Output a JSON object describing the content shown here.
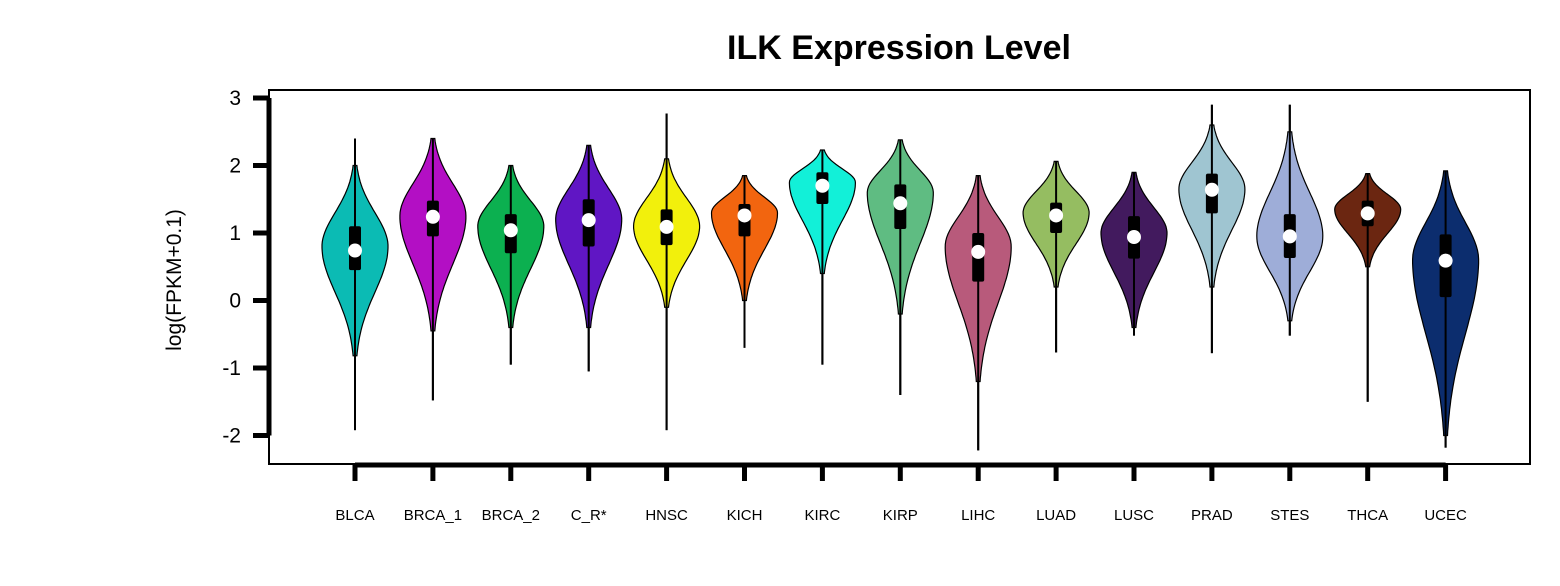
{
  "chart_data": {
    "type": "violin",
    "title": "ILK Expression Level",
    "xlabel": "",
    "ylabel": "log(FPKM+0.1)",
    "ylim": [
      -2.45,
      3.1
    ],
    "yticks": [
      -2,
      -1,
      0,
      1,
      2,
      3
    ],
    "grid": false,
    "legend": "none",
    "series": [
      {
        "name": "BLCA",
        "color": "#0bbbb4",
        "min": -1.92,
        "max": 2.4,
        "q1": 0.45,
        "median": 0.74,
        "q3": 1.1,
        "vmin": -0.82,
        "vmax": 2.0,
        "mode": 0.8
      },
      {
        "name": "BRCA_1",
        "color": "#b30fc4",
        "min": -1.48,
        "max": 2.4,
        "q1": 0.95,
        "median": 1.24,
        "q3": 1.48,
        "vmin": -0.45,
        "vmax": 2.4,
        "mode": 1.25
      },
      {
        "name": "BRCA_2",
        "color": "#0cb050",
        "min": -0.95,
        "max": 2.0,
        "q1": 0.7,
        "median": 1.04,
        "q3": 1.28,
        "vmin": -0.4,
        "vmax": 2.0,
        "mode": 1.1
      },
      {
        "name": "C_R*",
        "color": "#6016c4",
        "min": -1.05,
        "max": 2.3,
        "q1": 0.8,
        "median": 1.19,
        "q3": 1.5,
        "vmin": -0.4,
        "vmax": 2.3,
        "mode": 1.2
      },
      {
        "name": "HNSC",
        "color": "#f2f00c",
        "min": -1.92,
        "max": 2.77,
        "q1": 0.82,
        "median": 1.09,
        "q3": 1.35,
        "vmin": -0.1,
        "vmax": 2.1,
        "mode": 1.1
      },
      {
        "name": "KICH",
        "color": "#f2650f",
        "min": -0.7,
        "max": 1.85,
        "q1": 0.95,
        "median": 1.26,
        "q3": 1.43,
        "vmin": 0.0,
        "vmax": 1.85,
        "mode": 1.3
      },
      {
        "name": "KIRC",
        "color": "#12f0d8",
        "min": -0.95,
        "max": 2.23,
        "q1": 1.43,
        "median": 1.7,
        "q3": 1.9,
        "vmin": 0.4,
        "vmax": 2.23,
        "mode": 1.75
      },
      {
        "name": "KIRP",
        "color": "#5fbc82",
        "min": -1.4,
        "max": 2.38,
        "q1": 1.06,
        "median": 1.44,
        "q3": 1.72,
        "vmin": -0.2,
        "vmax": 2.38,
        "mode": 1.6
      },
      {
        "name": "LIHC",
        "color": "#b85a7b",
        "min": -2.22,
        "max": 1.85,
        "q1": 0.28,
        "median": 0.72,
        "q3": 1.0,
        "vmin": -1.2,
        "vmax": 1.85,
        "mode": 0.8
      },
      {
        "name": "LUAD",
        "color": "#95bd61",
        "min": -0.77,
        "max": 2.06,
        "q1": 1.0,
        "median": 1.26,
        "q3": 1.45,
        "vmin": 0.2,
        "vmax": 2.06,
        "mode": 1.3
      },
      {
        "name": "LUSC",
        "color": "#421a5e",
        "min": -0.52,
        "max": 1.9,
        "q1": 0.62,
        "median": 0.94,
        "q3": 1.25,
        "vmin": -0.4,
        "vmax": 1.9,
        "mode": 1.0
      },
      {
        "name": "PRAD",
        "color": "#9fc5d1",
        "min": -0.78,
        "max": 2.9,
        "q1": 1.29,
        "median": 1.64,
        "q3": 1.88,
        "vmin": 0.2,
        "vmax": 2.6,
        "mode": 1.65
      },
      {
        "name": "STES",
        "color": "#9eadd8",
        "min": -0.52,
        "max": 2.9,
        "q1": 0.63,
        "median": 0.95,
        "q3": 1.28,
        "vmin": -0.3,
        "vmax": 2.5,
        "mode": 0.95
      },
      {
        "name": "THCA",
        "color": "#6b2611",
        "min": -1.5,
        "max": 1.88,
        "q1": 1.1,
        "median": 1.29,
        "q3": 1.48,
        "vmin": 0.5,
        "vmax": 1.88,
        "mode": 1.35
      },
      {
        "name": "UCEC",
        "color": "#0c2d6e",
        "min": -2.18,
        "max": 1.92,
        "q1": 0.05,
        "median": 0.59,
        "q3": 0.98,
        "vmin": -2.0,
        "vmax": 1.92,
        "mode": 0.6
      }
    ]
  }
}
